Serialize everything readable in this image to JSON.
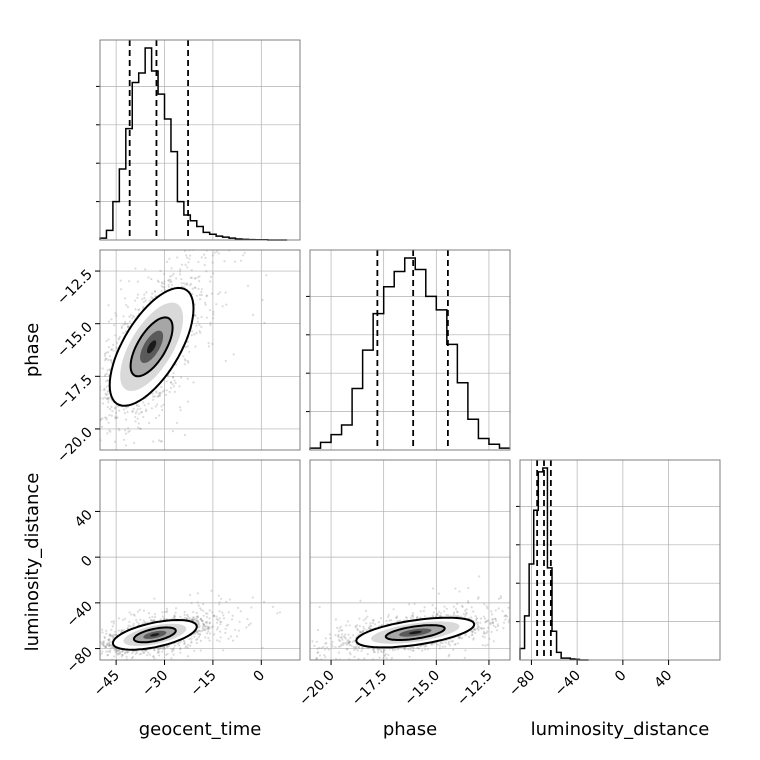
{
  "chart_data": {
    "type": "corner",
    "parameters": [
      "geocent_time",
      "phase",
      "luminosity_distance"
    ],
    "grid": true,
    "ranges": {
      "geocent_time": [
        -50,
        12
      ],
      "phase": [
        -21,
        -11.5
      ],
      "luminosity_distance": [
        -90,
        85
      ]
    },
    "ticks": {
      "geocent_time": [
        -45,
        -30,
        -15,
        0
      ],
      "phase": [
        -20.0,
        -17.5,
        -15.0,
        -12.5
      ],
      "luminosity_distance": [
        -80,
        -40,
        0,
        40
      ]
    },
    "tick_labels": {
      "geocent_time": [
        "−45",
        "−30",
        "−15",
        "0"
      ],
      "phase": [
        "−20.0",
        "−17.5",
        "−15.0",
        "−12.5"
      ],
      "luminosity_distance": [
        "−80",
        "−40",
        "0",
        "40"
      ]
    },
    "hist_ticks": {
      "geocent_time": [
        0.2,
        0.4,
        0.6,
        0.8
      ],
      "phase": [
        0.2,
        0.4,
        0.6,
        0.8
      ],
      "luminosity_distance": [
        0.2,
        0.4,
        0.6,
        0.8
      ]
    },
    "histograms": [
      {
        "param": "geocent_time",
        "bin_edges": [
          -50,
          -48,
          -46,
          -44,
          -42,
          -40,
          -38,
          -36,
          -34,
          -32,
          -30,
          -28,
          -26,
          -24,
          -22,
          -20,
          -18,
          -16,
          -14,
          -12,
          -10,
          -8,
          -6,
          -4,
          -2,
          0,
          2,
          4,
          6,
          8
        ],
        "counts": [
          0.01,
          0.05,
          0.2,
          0.37,
          0.58,
          0.82,
          0.87,
          1.0,
          0.88,
          0.76,
          0.63,
          0.46,
          0.2,
          0.13,
          0.1,
          0.07,
          0.04,
          0.03,
          0.02,
          0.015,
          0.01,
          0.005,
          0.003,
          0.002,
          0.001,
          0.001,
          0,
          0,
          0
        ],
        "quantiles": [
          -40.8,
          -32.5,
          -22.7
        ]
      },
      {
        "param": "phase",
        "bin_edges": [
          -21,
          -20.5,
          -20,
          -19.5,
          -19,
          -18.5,
          -18,
          -17.5,
          -17,
          -16.5,
          -16,
          -15.5,
          -15,
          -14.5,
          -14,
          -13.5,
          -13,
          -12.5,
          -12,
          -11.5
        ],
        "counts": [
          0.01,
          0.04,
          0.08,
          0.13,
          0.32,
          0.52,
          0.71,
          0.85,
          0.93,
          1.0,
          0.94,
          0.8,
          0.73,
          0.55,
          0.35,
          0.16,
          0.06,
          0.03,
          0.01
        ],
        "quantiles": [
          -17.8,
          -16.1,
          -14.45
        ]
      },
      {
        "param": "luminosity_distance",
        "bin_edges": [
          -90,
          -86,
          -82,
          -78,
          -74,
          -70,
          -66,
          -62,
          -58,
          -54,
          -50,
          -46,
          -42,
          -38,
          -34,
          -30
        ],
        "counts": [
          0.06,
          0.23,
          0.5,
          0.78,
          0.98,
          1.0,
          0.48,
          0.15,
          0.04,
          0.01,
          0.01,
          0.005,
          0.003,
          0,
          0
        ],
        "quantiles": [
          -75,
          -69,
          -63
        ]
      }
    ],
    "pairs": [
      {
        "x": "geocent_time",
        "y": "phase",
        "center": [
          -34,
          -16.1
        ],
        "sigma": [
          6.5,
          1.4
        ],
        "correlation": 0.65,
        "contour_levels": [
          1,
          2
        ],
        "scatter_points": 2200
      },
      {
        "x": "geocent_time",
        "y": "luminosity_distance",
        "center": [
          -33,
          -68
        ],
        "sigma": [
          6.5,
          6.5
        ],
        "correlation": 0.55,
        "contour_levels": [
          1,
          2
        ],
        "scatter_points": 2200
      },
      {
        "x": "phase",
        "y": "luminosity_distance",
        "center": [
          -16.0,
          -66
        ],
        "sigma": [
          1.4,
          6.5
        ],
        "correlation": 0.55,
        "contour_levels": [
          1,
          2
        ],
        "scatter_points": 2200
      }
    ],
    "colors": {
      "line": "#000000",
      "grid": "#b0b0b0",
      "frame": "#7f7f7f",
      "scatter": "#808080"
    }
  }
}
